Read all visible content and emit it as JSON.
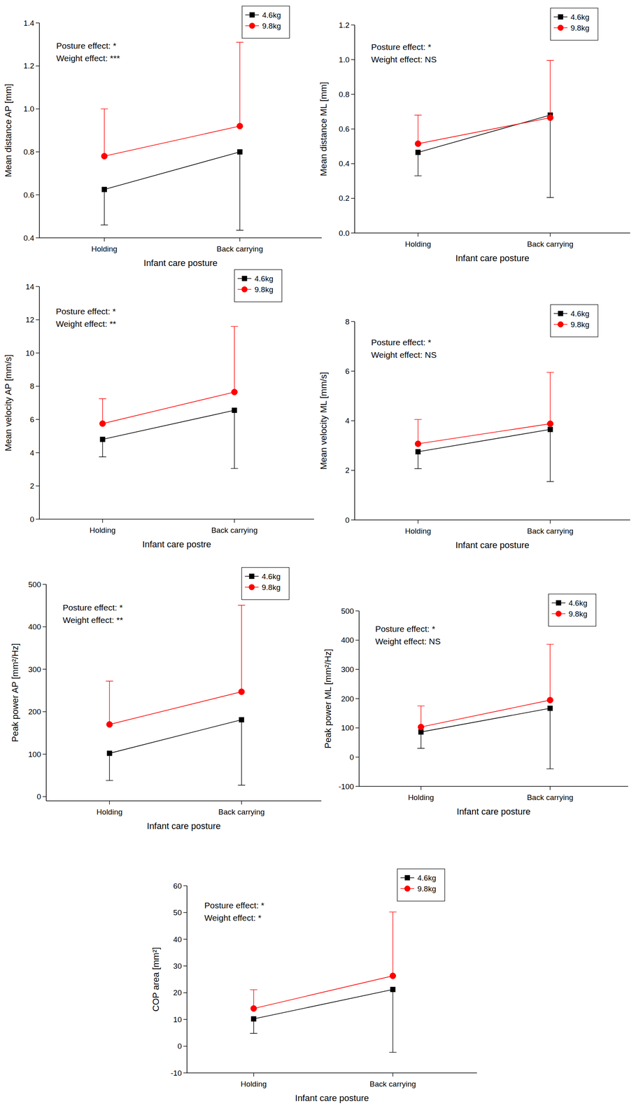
{
  "chart_data": [
    {
      "type": "line",
      "categories": [
        "Holding",
        "Back carrying"
      ],
      "y_label": "Mean distance AP [mm]",
      "x_label": "Infant care posture",
      "annotations": [
        "Posture effect: *",
        "Weight effect: ***"
      ],
      "ylim": [
        0.4,
        1.4
      ],
      "yticks": [
        0.4,
        0.6,
        0.8,
        {
          "value": 1,
          "label": "1.0"
        },
        1.2,
        1.4
      ],
      "grid": false,
      "legend": "upper right",
      "series": [
        {
          "name": "4.6kg",
          "color": "#000000",
          "marker": "square",
          "line_style": "solid",
          "values": [
            0.625,
            0.8
          ],
          "errors_minus": [
            0.165,
            0.365
          ]
        },
        {
          "name": "9.8kg",
          "color": "#ff0000",
          "marker": "circle",
          "line_style": "solid",
          "values": [
            0.78,
            0.92
          ],
          "errors_plus": [
            0.22,
            0.39
          ]
        }
      ]
    },
    {
      "type": "line",
      "categories": [
        "Holding",
        "Back carrying"
      ],
      "y_label": "Mean distance ML [mm]",
      "x_label": "Infant care posture",
      "annotations": [
        "Posture effect: *",
        "Weight effect: NS"
      ],
      "ylim": [
        0,
        1.2
      ],
      "yticks": [
        {
          "value": 0,
          "label": "0.0"
        },
        0.2,
        0.4,
        0.6,
        0.8,
        {
          "value": 1,
          "label": "1.0"
        },
        1.2
      ],
      "grid": false,
      "legend": "upper right",
      "series": [
        {
          "name": "4.6kg",
          "color": "#000000",
          "marker": "square",
          "line_style": "solid",
          "values": [
            0.465,
            0.68
          ],
          "errors_minus": [
            0.135,
            0.475
          ]
        },
        {
          "name": "9.8kg",
          "color": "#ff0000",
          "marker": "circle",
          "line_style": "solid",
          "values": [
            0.515,
            0.665
          ],
          "errors_plus": [
            0.165,
            0.33
          ]
        }
      ]
    },
    {
      "type": "line",
      "categories": [
        "Holding",
        "Back carrying"
      ],
      "y_label": "Mean velocity AP [mm/s]",
      "x_label": "Infant care postre",
      "annotations": [
        "Posture effect: *",
        "Weight effect: **"
      ],
      "ylim": [
        0,
        14
      ],
      "yticks": [
        0,
        2,
        4,
        6,
        8,
        10,
        12,
        14
      ],
      "grid": false,
      "legend": "upper right",
      "series": [
        {
          "name": "4.6kg",
          "color": "#000000",
          "marker": "square",
          "line_style": "solid",
          "values": [
            4.8,
            6.55
          ],
          "errors_minus": [
            1.05,
            3.5
          ]
        },
        {
          "name": "9.8kg",
          "color": "#ff0000",
          "marker": "circle",
          "line_style": "solid",
          "values": [
            5.75,
            7.65
          ],
          "errors_plus": [
            1.5,
            3.95
          ]
        }
      ]
    },
    {
      "type": "line",
      "categories": [
        "Holding",
        "Back carrying"
      ],
      "y_label": "Mean velocity ML [mm/s]",
      "x_label": "Infant care posture",
      "annotations": [
        "Posture effect: *",
        "Weight effect: NS"
      ],
      "ylim": [
        0,
        8
      ],
      "yticks": [
        0,
        2,
        4,
        6,
        8
      ],
      "grid": false,
      "legend": "upper right",
      "series": [
        {
          "name": "4.6kg",
          "color": "#000000",
          "marker": "square",
          "line_style": "solid",
          "values": [
            2.75,
            3.65
          ],
          "errors_minus": [
            0.68,
            2.1
          ]
        },
        {
          "name": "9.8kg",
          "color": "#ff0000",
          "marker": "circle",
          "line_style": "solid",
          "values": [
            3.07,
            3.88
          ],
          "errors_plus": [
            0.98,
            2.07
          ]
        }
      ]
    },
    {
      "type": "line",
      "categories": [
        "Holding",
        "Back carrying"
      ],
      "y_label": "Peak power AP [mm²/Hz]",
      "x_label": "Infant care posture",
      "annotations": [
        "Posture effect: *",
        "Weight effect: **"
      ],
      "ylim": [
        -10,
        500
      ],
      "yticks": [
        0,
        100,
        200,
        300,
        400,
        500
      ],
      "grid": false,
      "legend": "upper right",
      "series": [
        {
          "name": "4.6kg",
          "color": "#000000",
          "marker": "square",
          "line_style": "solid",
          "values": [
            102,
            181
          ],
          "errors_minus": [
            64,
            154
          ]
        },
        {
          "name": "9.8kg",
          "color": "#ff0000",
          "marker": "circle",
          "line_style": "solid",
          "values": [
            170,
            247
          ],
          "errors_plus": [
            102,
            204
          ]
        }
      ]
    },
    {
      "type": "line",
      "categories": [
        "Holding",
        "Back carrying"
      ],
      "y_label": "Peak power ML [mm²/Hz]",
      "x_label": "Infant care posture",
      "annotations": [
        "Posture effect: *",
        "Weight effect: NS"
      ],
      "ylim": [
        -100,
        500
      ],
      "yticks": [
        -100,
        0,
        100,
        200,
        300,
        400,
        500
      ],
      "grid": false,
      "legend": "upper right",
      "series": [
        {
          "name": "4.6kg",
          "color": "#000000",
          "marker": "square",
          "line_style": "solid",
          "values": [
            86,
            167
          ],
          "errors_minus": [
            56,
            207
          ]
        },
        {
          "name": "9.8kg",
          "color": "#ff0000",
          "marker": "circle",
          "line_style": "solid",
          "values": [
            103,
            195
          ],
          "errors_plus": [
            72,
            191
          ]
        }
      ]
    },
    {
      "type": "line",
      "categories": [
        "Holding",
        "Back carrying"
      ],
      "y_label": "COP area [mm²]",
      "x_label": "Infant care posture",
      "annotations": [
        "Posture effect: *",
        "Weight effect: *"
      ],
      "ylim": [
        -10,
        60
      ],
      "yticks": [
        -10,
        0,
        10,
        20,
        30,
        40,
        50,
        60
      ],
      "grid": false,
      "legend": "upper right",
      "series": [
        {
          "name": "4.6kg",
          "color": "#000000",
          "marker": "square",
          "line_style": "solid",
          "values": [
            10.2,
            21.2
          ],
          "errors_minus": [
            5.4,
            23.5
          ]
        },
        {
          "name": "9.8kg",
          "color": "#ff0000",
          "marker": "circle",
          "line_style": "solid",
          "values": [
            14.1,
            26.3
          ],
          "errors_plus": [
            7,
            23.9
          ]
        }
      ]
    }
  ]
}
